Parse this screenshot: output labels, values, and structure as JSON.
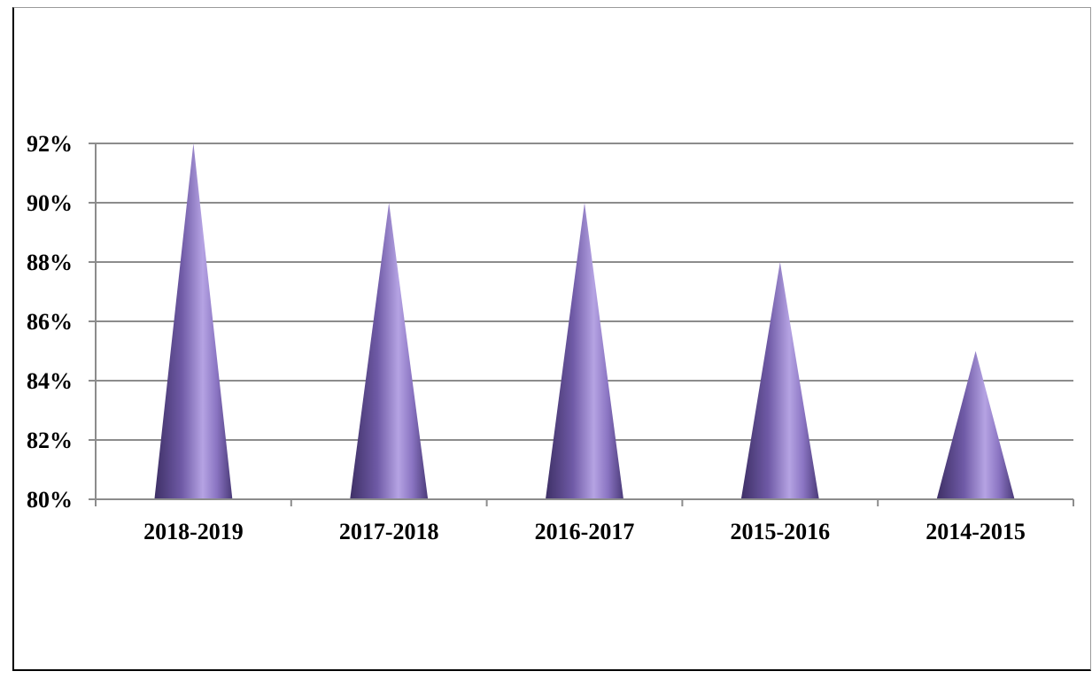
{
  "chart_data": {
    "type": "bar",
    "shape": "cone",
    "categories": [
      "2018-2019",
      "2017-2018",
      "2016-2017",
      "2015-2016",
      "2014-2015"
    ],
    "values": [
      92,
      90,
      90,
      88,
      85
    ],
    "ylim": [
      80,
      92
    ],
    "yticks": [
      "80%",
      "82%",
      "84%",
      "86%",
      "88%",
      "90%",
      "92%"
    ],
    "ytick_values": [
      80,
      82,
      84,
      86,
      88,
      90,
      92
    ],
    "grid": true,
    "title": "",
    "xlabel": "",
    "ylabel": "",
    "colors": {
      "cone_dark": "#4a3a78",
      "cone_mid": "#7d66b3",
      "cone_light": "#b5a3e3",
      "grid": "#8c8c8c",
      "axis": "#8c8c8c"
    }
  }
}
